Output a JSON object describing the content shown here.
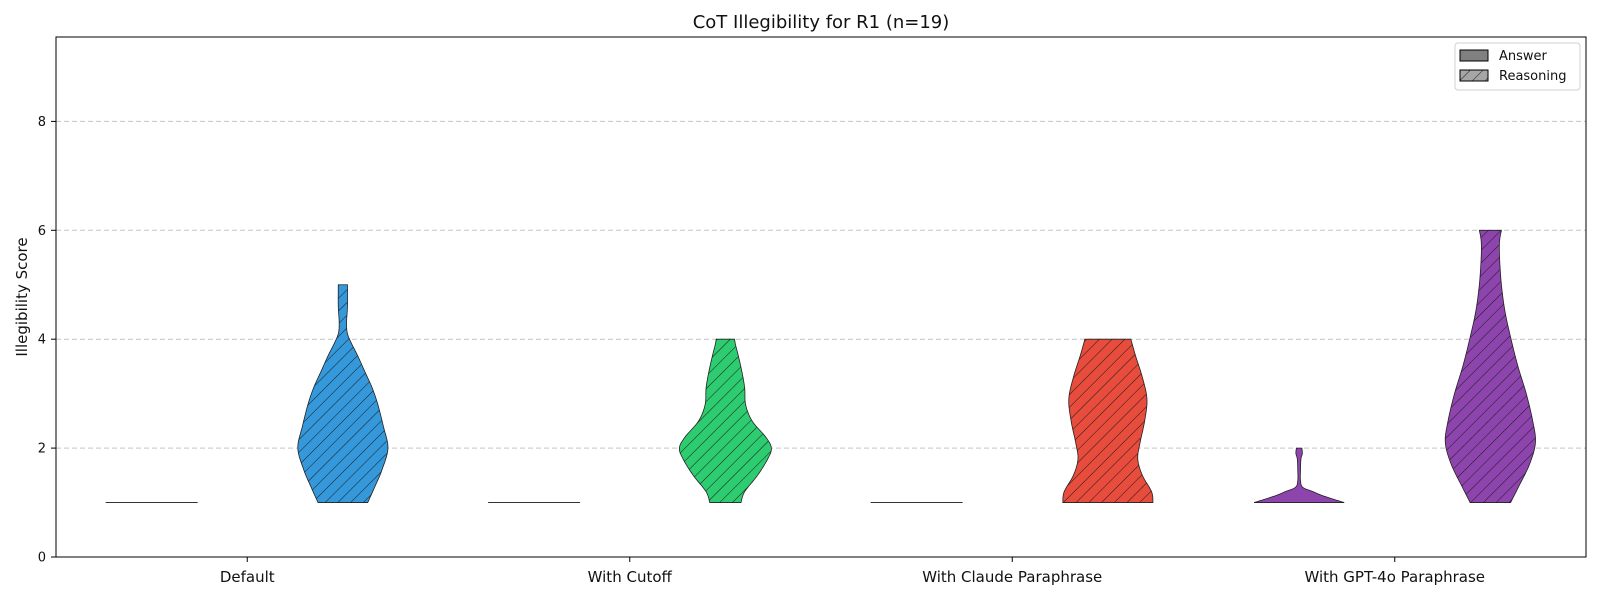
{
  "chart_data": {
    "type": "violin",
    "title": "CoT Illegibility for R1 (n=19)",
    "xlabel": "",
    "ylabel": "Illegibility Score",
    "ylim": [
      0,
      9.55
    ],
    "yticks": [
      0,
      2,
      4,
      6,
      8
    ],
    "grid": "horizontal-dashed",
    "legend_position": "top-right",
    "legend": [
      {
        "label": "Answer",
        "pattern": "solid",
        "color": "#808080"
      },
      {
        "label": "Reasoning",
        "pattern": "hatched",
        "color": "#a6a6a6"
      }
    ],
    "categories": [
      "Default",
      "With Cutoff",
      "With Claude Paraphrase",
      "With GPT-4o Paraphrase"
    ],
    "groups": [
      {
        "category": "Default",
        "color": "#3498db",
        "answer": {
          "min": 1,
          "max": 1,
          "profile": [
            [
              1,
              0
            ]
          ]
        },
        "reasoning": {
          "min": 1,
          "max": 5,
          "profile": [
            [
              1,
              0.54
            ],
            [
              1.3,
              0.7
            ],
            [
              1.6,
              0.85
            ],
            [
              2.0,
              0.98
            ],
            [
              2.4,
              0.88
            ],
            [
              2.8,
              0.76
            ],
            [
              3.1,
              0.64
            ],
            [
              3.4,
              0.48
            ],
            [
              3.7,
              0.32
            ],
            [
              3.9,
              0.2
            ],
            [
              4.1,
              0.1
            ],
            [
              4.3,
              0.08
            ],
            [
              4.6,
              0.1
            ],
            [
              5.0,
              0.1
            ]
          ]
        }
      },
      {
        "category": "With Cutoff",
        "color": "#2ecc71",
        "answer": {
          "min": 1,
          "max": 1,
          "profile": [
            [
              1,
              0
            ]
          ]
        },
        "reasoning": {
          "min": 1,
          "max": 4,
          "profile": [
            [
              1,
              0.34
            ],
            [
              1.2,
              0.42
            ],
            [
              1.5,
              0.7
            ],
            [
              1.8,
              0.92
            ],
            [
              2.0,
              1.0
            ],
            [
              2.2,
              0.88
            ],
            [
              2.5,
              0.58
            ],
            [
              2.8,
              0.44
            ],
            [
              3.1,
              0.42
            ],
            [
              3.4,
              0.36
            ],
            [
              3.7,
              0.28
            ],
            [
              3.9,
              0.22
            ],
            [
              4.0,
              0.2
            ]
          ]
        }
      },
      {
        "category": "With Claude Paraphrase",
        "color": "#e74c3c",
        "answer": {
          "min": 1,
          "max": 1,
          "profile": [
            [
              1,
              0
            ]
          ]
        },
        "reasoning": {
          "min": 1,
          "max": 4,
          "profile": [
            [
              1,
              0.98
            ],
            [
              1.2,
              0.95
            ],
            [
              1.5,
              0.75
            ],
            [
              1.8,
              0.65
            ],
            [
              2.1,
              0.7
            ],
            [
              2.5,
              0.8
            ],
            [
              2.9,
              0.85
            ],
            [
              3.3,
              0.75
            ],
            [
              3.7,
              0.6
            ],
            [
              4.0,
              0.5
            ]
          ]
        }
      },
      {
        "category": "With GPT-4o Paraphrase",
        "color": "#8e44ad",
        "answer": {
          "min": 1,
          "max": 2,
          "profile": [
            [
              1,
              0.98
            ],
            [
              1.06,
              0.75
            ],
            [
              1.13,
              0.5
            ],
            [
              1.2,
              0.3
            ],
            [
              1.28,
              0.08
            ],
            [
              1.4,
              0.03
            ],
            [
              1.6,
              0.03
            ],
            [
              1.8,
              0.04
            ],
            [
              1.9,
              0.07
            ],
            [
              2.0,
              0.06
            ]
          ]
        },
        "reasoning": {
          "min": 1,
          "max": 6,
          "profile": [
            [
              1,
              0.44
            ],
            [
              1.3,
              0.62
            ],
            [
              1.7,
              0.85
            ],
            [
              2.1,
              0.98
            ],
            [
              2.5,
              0.92
            ],
            [
              3.0,
              0.78
            ],
            [
              3.5,
              0.6
            ],
            [
              4.0,
              0.45
            ],
            [
              4.5,
              0.32
            ],
            [
              5.0,
              0.24
            ],
            [
              5.5,
              0.2
            ],
            [
              5.8,
              0.2
            ],
            [
              6.0,
              0.24
            ]
          ]
        }
      }
    ]
  }
}
